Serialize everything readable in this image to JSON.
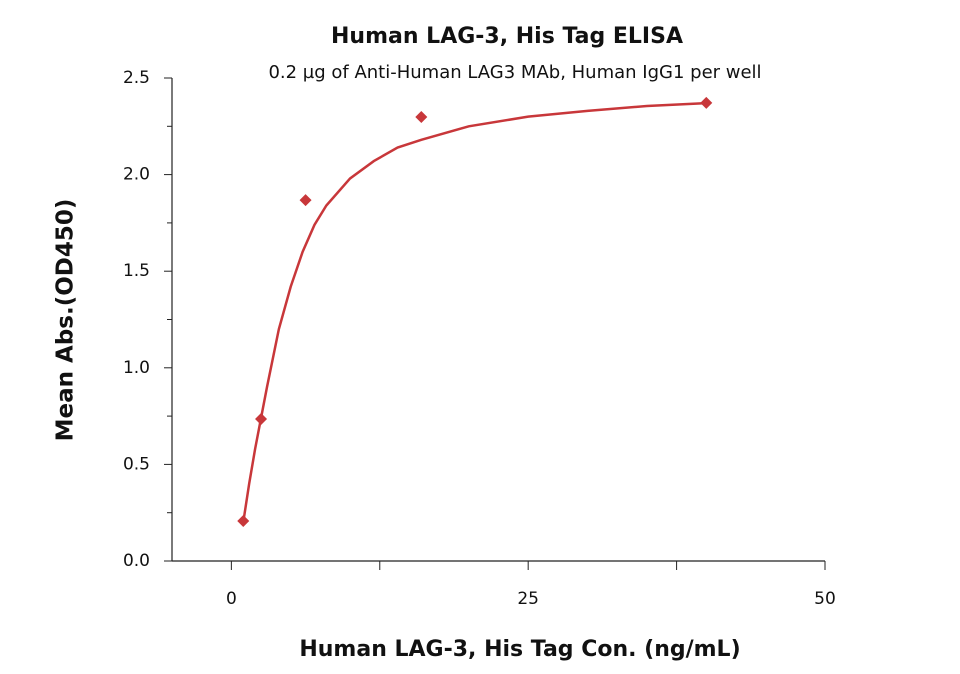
{
  "chart_data": {
    "type": "scatter",
    "title": "Human LAG-3, His Tag ELISA",
    "subtitle": "0.2 µg of Anti-Human LAG3 MAb, Human IgG1 per well",
    "x_label": "Human LAG-3, His Tag Con. (ng/mL)",
    "y_label": "Mean Abs.(OD450)",
    "series": [
      {
        "type": "scatter",
        "marker": "diamond",
        "color": "#c8373a",
        "x": [
          1,
          2.5,
          6.25,
          16,
          40
        ],
        "values": [
          0.207,
          0.735,
          1.868,
          2.298,
          2.371
        ]
      },
      {
        "type": "line",
        "color": "#c8373a",
        "x": [
          1,
          1.5,
          2,
          2.5,
          3,
          4,
          5,
          6,
          7,
          8,
          10,
          12,
          14,
          16,
          20,
          25,
          30,
          35,
          40
        ],
        "values": [
          0.2,
          0.4,
          0.58,
          0.74,
          0.9,
          1.2,
          1.42,
          1.6,
          1.74,
          1.84,
          1.98,
          2.07,
          2.14,
          2.18,
          2.25,
          2.3,
          2.33,
          2.355,
          2.37
        ]
      }
    ],
    "xlim": [
      -5,
      50
    ],
    "ylim": [
      0,
      2.5
    ],
    "xticks": [
      0,
      25,
      50
    ],
    "xminorticks": [
      12.5,
      37.5
    ],
    "yticks": [
      {
        "value": 0,
        "label": "0.0"
      },
      {
        "value": 0.5,
        "label": "0.5"
      },
      {
        "value": 1,
        "label": "1.0"
      },
      {
        "value": 1.5,
        "label": "1.5"
      },
      {
        "value": 2,
        "label": "2.0"
      },
      {
        "value": 2.5,
        "label": "2.5"
      }
    ],
    "yminorticks": [
      0.25,
      0.75,
      1.25,
      1.75,
      2.25
    ],
    "grid": false
  }
}
